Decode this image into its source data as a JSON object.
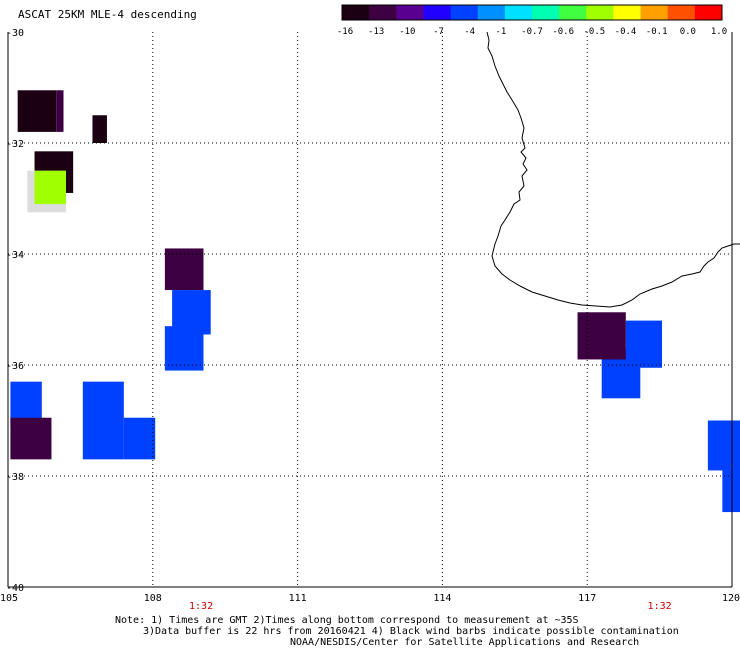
{
  "title": "ASCAT 25KM MLE-4 descending",
  "colorbar": {
    "labels": [
      "-16",
      "-13",
      "-10",
      "-7",
      "-4",
      "-1",
      "-0.7",
      "-0.6",
      "-0.5",
      "-0.4",
      "-0.1",
      "0.0",
      "1.0"
    ],
    "colors": [
      "#1a0010",
      "#3d0040",
      "#5a0090",
      "#2000ff",
      "#0040ff",
      "#0090ff",
      "#00e0ff",
      "#00ffb0",
      "#40ff40",
      "#a0ff00",
      "#ffff00",
      "#ffa000",
      "#ff5000",
      "#ff0000"
    ]
  },
  "axes": {
    "lon_ticks": [
      "105",
      "108",
      "111",
      "114",
      "117",
      "120"
    ],
    "lat_ticks": [
      "-30",
      "-32",
      "-34",
      "-36",
      "-38",
      "-40"
    ],
    "lon_range": [
      105,
      120
    ],
    "lat_range": [
      -30,
      -40
    ]
  },
  "time_labels": [
    {
      "text": "1:32",
      "lon": 109.0
    },
    {
      "text": "1:32",
      "lon": 118.5
    }
  ],
  "colors": {
    "time_label": "#cc0000",
    "grid": "#000000",
    "coast": "#000000"
  },
  "cells": [
    {
      "lon0": 105.2,
      "lon1": 106.0,
      "lat0": -31.05,
      "lat1": -31.8,
      "color": "#1a0010"
    },
    {
      "lon0": 106.0,
      "lon1": 106.15,
      "lat0": -31.05,
      "lat1": -31.8,
      "color": "#3d0040"
    },
    {
      "lon0": 106.75,
      "lon1": 107.05,
      "lat0": -31.5,
      "lat1": -32.0,
      "color": "#1a0010"
    },
    {
      "lon0": 105.55,
      "lon1": 106.35,
      "lat0": -32.15,
      "lat1": -32.9,
      "color": "#1a0010"
    },
    {
      "lon0": 105.4,
      "lon1": 106.2,
      "lat0": -32.5,
      "lat1": -33.25,
      "color": "#dddddd"
    },
    {
      "lon0": 105.55,
      "lon1": 106.2,
      "lat0": -32.5,
      "lat1": -33.1,
      "color": "#a0ff00"
    },
    {
      "lon0": 108.25,
      "lon1": 109.05,
      "lat0": -33.9,
      "lat1": -34.65,
      "color": "#3d0040"
    },
    {
      "lon0": 108.4,
      "lon1": 109.2,
      "lat0": -34.65,
      "lat1": -35.45,
      "color": "#0040ff"
    },
    {
      "lon0": 108.25,
      "lon1": 109.05,
      "lat0": -35.3,
      "lat1": -36.1,
      "color": "#0040ff"
    },
    {
      "lon0": 105.05,
      "lon1": 105.7,
      "lat0": -36.3,
      "lat1": -37.1,
      "color": "#0040ff"
    },
    {
      "lon0": 105.05,
      "lon1": 105.9,
      "lat0": -36.95,
      "lat1": -37.7,
      "color": "#3d0040"
    },
    {
      "lon0": 106.55,
      "lon1": 107.4,
      "lat0": -36.3,
      "lat1": -37.7,
      "color": "#0040ff"
    },
    {
      "lon0": 107.4,
      "lon1": 108.05,
      "lat0": -36.95,
      "lat1": -37.7,
      "color": "#0040ff"
    },
    {
      "lon0": 117.8,
      "lon1": 118.55,
      "lat0": -35.2,
      "lat1": -36.05,
      "color": "#0040ff"
    },
    {
      "lon0": 117.3,
      "lon1": 118.1,
      "lat0": -35.7,
      "lat1": -36.6,
      "color": "#0040ff"
    },
    {
      "lon0": 116.8,
      "lon1": 117.8,
      "lat0": -35.05,
      "lat1": -35.9,
      "color": "#3d0040"
    },
    {
      "lon0": 119.5,
      "lon1": 120.3,
      "lat0": -37.0,
      "lat1": -37.9,
      "color": "#0040ff"
    },
    {
      "lon0": 119.8,
      "lon1": 120.3,
      "lat0": -37.6,
      "lat1": -38.65,
      "color": "#0040ff"
    }
  ],
  "notes": [
    "Note: 1) Times are GMT 2)Times along bottom correspond to measurement at ~35S",
    "3)Data buffer is 22 hrs from 20160421 4) Black wind barbs indicate possible contamination",
    "NOAA/NESDIS/Center for Satellite Applications and Research"
  ]
}
